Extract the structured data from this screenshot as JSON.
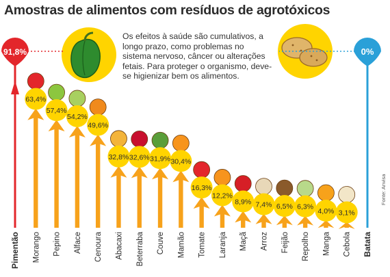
{
  "title": "Amostras de alimentos com resíduos de agrotóxicos",
  "note": "Os efeitos à saúde são cumulativos, a longo prazo, como problemas no sistema nervoso, câncer ou alterações fetais. Para proteger o organismo, deve-se higienizar bem os alimentos.",
  "source": "Fonte: Anvisa",
  "colors": {
    "max": "#e3262b",
    "min": "#2aa0d8",
    "bubble": "#ffd400",
    "arrow": "#f7a21b"
  },
  "icons": {
    "max": "green-pepper-icon",
    "min": "potato-icon"
  },
  "chart_data": {
    "type": "bar",
    "unit": "%",
    "categories": [
      "Pimentão",
      "Morango",
      "Pepino",
      "Alface",
      "Cenoura",
      "Abacaxi",
      "Beterraba",
      "Couve",
      "Mamão",
      "Tomate",
      "Laranja",
      "Maçã",
      "Arroz",
      "Feijão",
      "Repolho",
      "Manga",
      "Cebola",
      "Batata"
    ],
    "labels": [
      "91,8%",
      "63,4%",
      "57,4%",
      "54,2%",
      "49,6%",
      "32,8%",
      "32,6%",
      "31,9%",
      "30,4%",
      "16,3%",
      "12,2%",
      "8,9%",
      "7,4%",
      "6,5%",
      "6,3%",
      "4,0%",
      "3,1%",
      "0%"
    ],
    "values": [
      91.8,
      63.4,
      57.4,
      54.2,
      49.6,
      32.8,
      32.6,
      31.9,
      30.4,
      16.3,
      12.2,
      8.9,
      7.4,
      6.5,
      6.3,
      4.0,
      3.1,
      0
    ]
  }
}
